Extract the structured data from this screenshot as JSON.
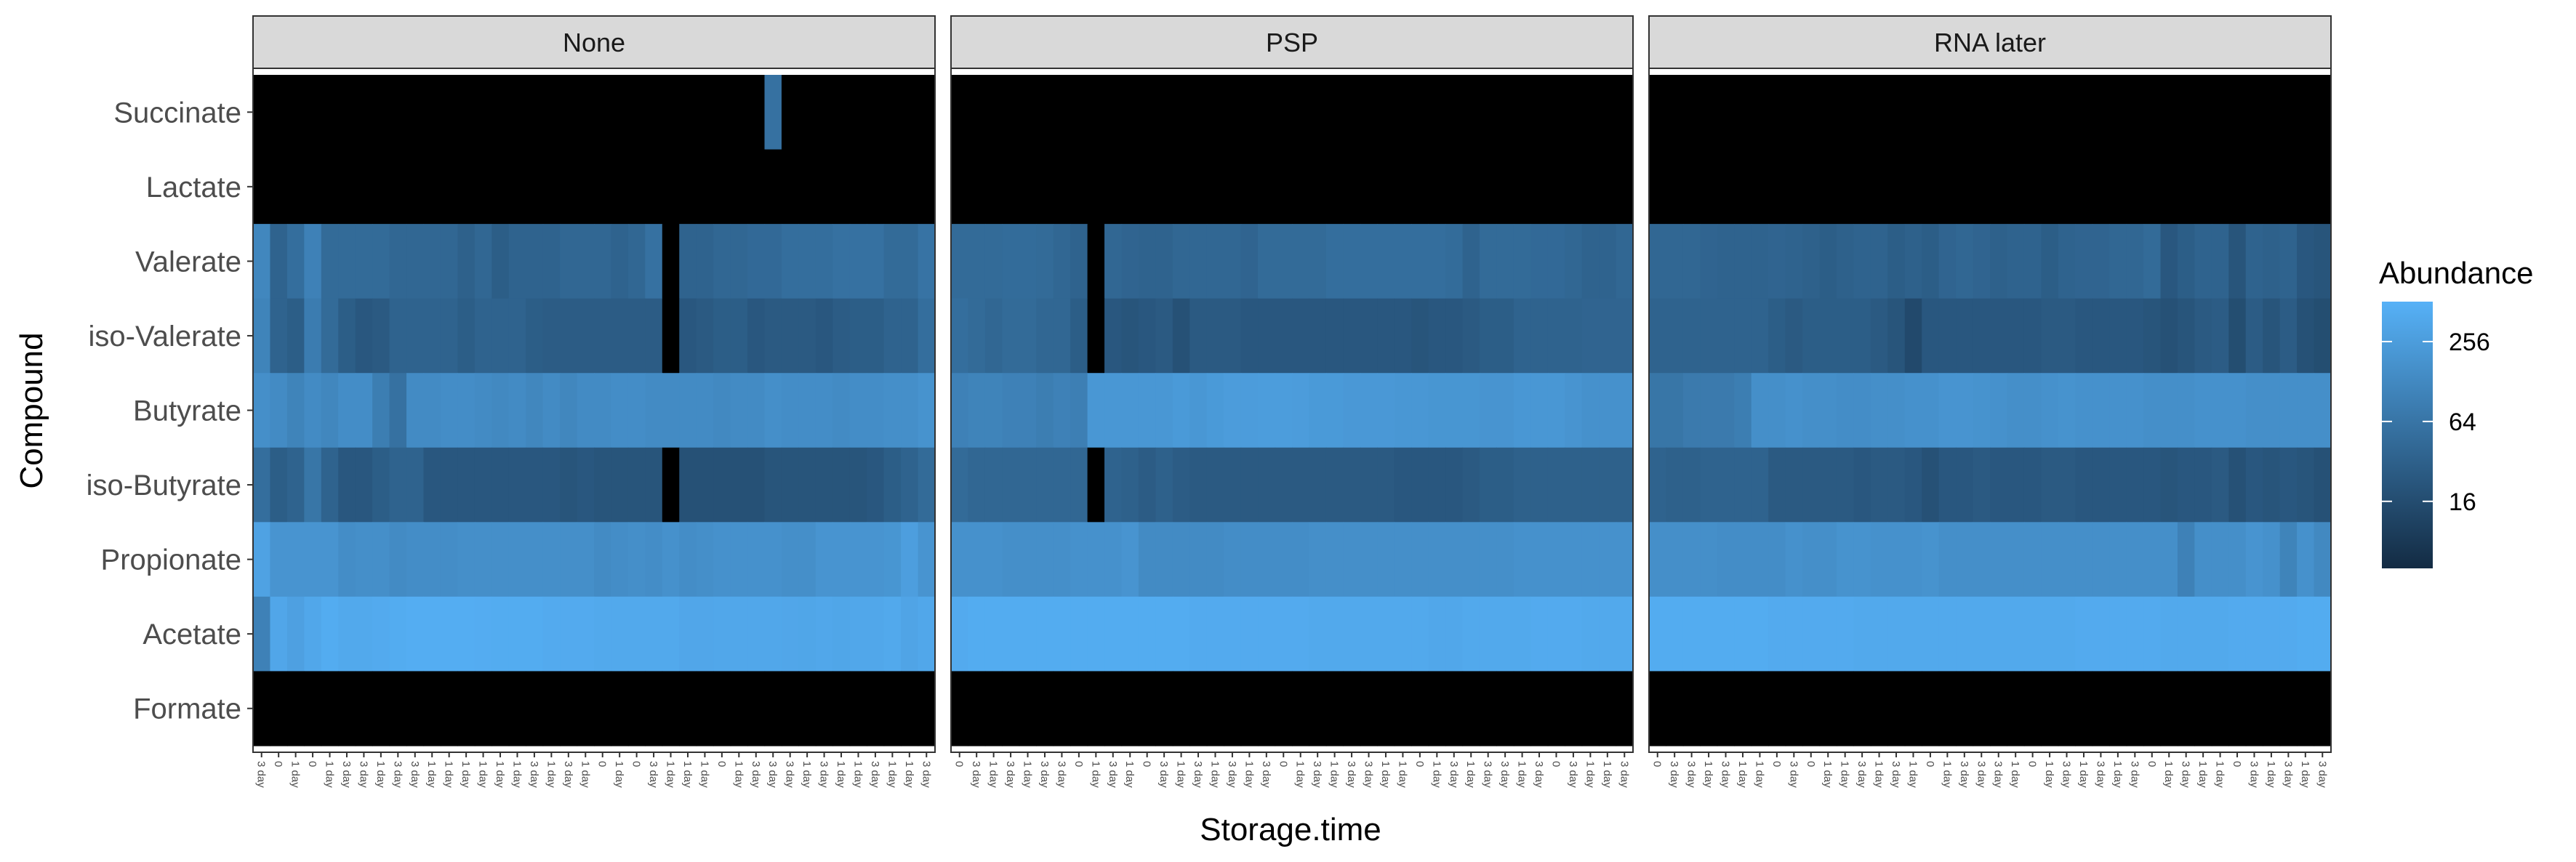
{
  "chart_data": {
    "type": "heatmap",
    "xlabel": "Storage.time",
    "ylabel": "Compound",
    "compounds": [
      "Succinate",
      "Lactate",
      "Valerate",
      "iso-Valerate",
      "Butyrate",
      "iso-Butyrate",
      "Propionate",
      "Acetate",
      "Formate"
    ],
    "legend": {
      "title": "Abundance",
      "position": "right",
      "scale": "log2",
      "range": [
        4,
        512
      ],
      "ticks": [
        16,
        64,
        256
      ],
      "low_color": "#132B43",
      "high_color": "#56B1F7"
    },
    "panels": [
      {
        "name": "None",
        "x_labels": [
          "3 day",
          "0",
          "1 day",
          "0",
          "1 day",
          "3 day",
          "3 day",
          "1 day",
          "3 day",
          "3 day",
          "1 day",
          "1 day",
          "1 day",
          "1 day",
          "1 day",
          "1 day",
          "3 day",
          "1 day",
          "3 day",
          "1 day",
          "0",
          "1 day",
          "0",
          "3 day",
          "1 day",
          "1 day",
          "1 day",
          "0",
          "1 day",
          "3 day",
          "3 day",
          "3 day",
          "1 day",
          "3 day",
          "1 day",
          "1 day",
          "3 day",
          "1 day",
          "1 day",
          "3 day"
        ],
        "values": {
          "Succinate": [
            0,
            0,
            0,
            0,
            0,
            0,
            0,
            0,
            0,
            0,
            0,
            0,
            0,
            0,
            0,
            0,
            0,
            0,
            0,
            0,
            0,
            0,
            0,
            0,
            0,
            0,
            0,
            0,
            0,
            0,
            50,
            0,
            0,
            0,
            0,
            0,
            0,
            0,
            0,
            0
          ],
          "Lactate": [
            0,
            0,
            0,
            0,
            0,
            0,
            0,
            0,
            0,
            0,
            0,
            0,
            0,
            0,
            0,
            0,
            0,
            0,
            0,
            0,
            0,
            0,
            0,
            0,
            0,
            0,
            0,
            0,
            0,
            0,
            0,
            0,
            0,
            0,
            0,
            0,
            0,
            0,
            0,
            0
          ],
          "Valerate": [
            110,
            30,
            45,
            90,
            40,
            40,
            40,
            40,
            35,
            35,
            35,
            35,
            28,
            35,
            25,
            30,
            30,
            30,
            35,
            35,
            35,
            30,
            35,
            50,
            0,
            30,
            30,
            35,
            35,
            38,
            38,
            45,
            45,
            45,
            50,
            50,
            50,
            40,
            40,
            55
          ],
          "iso-Valerate": [
            100,
            30,
            25,
            75,
            40,
            25,
            20,
            22,
            30,
            30,
            30,
            30,
            25,
            30,
            30,
            30,
            25,
            24,
            24,
            24,
            24,
            24,
            24,
            24,
            0,
            20,
            22,
            25,
            25,
            20,
            22,
            22,
            22,
            20,
            24,
            25,
            25,
            30,
            30,
            45
          ],
          "Butyrate": [
            150,
            130,
            100,
            130,
            110,
            140,
            140,
            80,
            50,
            130,
            130,
            140,
            140,
            130,
            120,
            130,
            110,
            130,
            110,
            130,
            130,
            140,
            140,
            130,
            130,
            130,
            130,
            120,
            130,
            130,
            150,
            140,
            140,
            140,
            130,
            140,
            140,
            150,
            150,
            170
          ],
          "iso-Butyrate": [
            45,
            25,
            30,
            60,
            30,
            20,
            20,
            25,
            30,
            30,
            20,
            20,
            20,
            20,
            20,
            20,
            20,
            20,
            18,
            20,
            18,
            18,
            18,
            18,
            0,
            16,
            16,
            16,
            16,
            16,
            18,
            18,
            18,
            18,
            18,
            18,
            20,
            25,
            30,
            40
          ],
          "Propionate": [
            300,
            180,
            180,
            180,
            180,
            140,
            150,
            150,
            130,
            140,
            140,
            140,
            150,
            150,
            150,
            150,
            150,
            150,
            150,
            150,
            130,
            140,
            150,
            140,
            160,
            140,
            150,
            160,
            160,
            160,
            160,
            150,
            150,
            180,
            180,
            180,
            180,
            190,
            260,
            180
          ],
          "Acetate": [
            90,
            350,
            280,
            360,
            420,
            380,
            380,
            400,
            420,
            450,
            450,
            450,
            450,
            430,
            420,
            420,
            420,
            400,
            400,
            400,
            380,
            380,
            380,
            380,
            380,
            350,
            350,
            360,
            360,
            360,
            360,
            350,
            340,
            360,
            340,
            360,
            360,
            380,
            320,
            360
          ]
        }
      },
      {
        "name": "PSP",
        "x_labels": [
          "0",
          "3 day",
          "1 day",
          "3 day",
          "1 day",
          "3 day",
          "3 day",
          "0",
          "1 day",
          "3 day",
          "1 day",
          "0",
          "3 day",
          "1 day",
          "3 day",
          "1 day",
          "3 day",
          "1 day",
          "3 day",
          "0",
          "1 day",
          "3 day",
          "1 day",
          "3 day",
          "3 day",
          "1 day",
          "1 day",
          "0",
          "1 day",
          "3 day",
          "1 day",
          "3 day",
          "3 day",
          "1 day",
          "3 day",
          "0",
          "3 day",
          "1 day",
          "1 day",
          "3 day"
        ],
        "values": {
          "Succinate": [
            0,
            0,
            0,
            0,
            0,
            0,
            0,
            0,
            0,
            0,
            0,
            0,
            0,
            0,
            0,
            0,
            0,
            0,
            0,
            0,
            0,
            0,
            0,
            0,
            0,
            0,
            0,
            0,
            0,
            0,
            0,
            0,
            0,
            0,
            0,
            0,
            0,
            0,
            0,
            0
          ],
          "Lactate": [
            0,
            0,
            0,
            0,
            0,
            0,
            0,
            0,
            0,
            0,
            0,
            0,
            0,
            0,
            0,
            0,
            0,
            0,
            0,
            0,
            0,
            0,
            0,
            0,
            0,
            0,
            0,
            0,
            0,
            0,
            0,
            0,
            0,
            0,
            0,
            0,
            0,
            0,
            0,
            0
          ],
          "Valerate": [
            40,
            40,
            40,
            42,
            42,
            40,
            35,
            30,
            0,
            35,
            32,
            30,
            30,
            35,
            35,
            35,
            35,
            32,
            40,
            40,
            40,
            40,
            45,
            45,
            45,
            45,
            45,
            45,
            45,
            42,
            30,
            40,
            40,
            40,
            38,
            38,
            35,
            30,
            30,
            35
          ],
          "iso-Valerate": [
            45,
            40,
            35,
            40,
            40,
            35,
            35,
            25,
            0,
            20,
            18,
            20,
            22,
            16,
            22,
            22,
            22,
            20,
            20,
            20,
            20,
            20,
            20,
            20,
            20,
            20,
            20,
            18,
            20,
            20,
            22,
            25,
            25,
            30,
            30,
            30,
            30,
            32,
            32,
            32
          ],
          "Butyrate": [
            90,
            100,
            100,
            90,
            90,
            80,
            90,
            85,
            200,
            200,
            200,
            200,
            200,
            220,
            200,
            220,
            240,
            240,
            250,
            250,
            240,
            220,
            220,
            210,
            210,
            210,
            200,
            200,
            190,
            190,
            190,
            180,
            180,
            200,
            200,
            200,
            180,
            160,
            160,
            160
          ],
          "iso-Butyrate": [
            40,
            35,
            35,
            35,
            35,
            35,
            35,
            35,
            0,
            30,
            28,
            24,
            28,
            24,
            22,
            22,
            22,
            22,
            22,
            22,
            22,
            22,
            22,
            22,
            22,
            22,
            20,
            20,
            20,
            20,
            22,
            25,
            25,
            28,
            28,
            28,
            28,
            28,
            28,
            28
          ],
          "Propionate": [
            160,
            160,
            160,
            150,
            150,
            150,
            150,
            160,
            160,
            160,
            180,
            130,
            130,
            130,
            130,
            130,
            140,
            140,
            140,
            140,
            140,
            150,
            150,
            150,
            150,
            150,
            150,
            150,
            150,
            150,
            150,
            150,
            150,
            160,
            160,
            160,
            160,
            160,
            160,
            160
          ],
          "Acetate": [
            400,
            420,
            420,
            420,
            420,
            420,
            420,
            420,
            420,
            420,
            420,
            420,
            420,
            420,
            400,
            400,
            400,
            400,
            400,
            400,
            400,
            380,
            380,
            380,
            380,
            380,
            380,
            380,
            360,
            360,
            380,
            380,
            380,
            380,
            400,
            400,
            400,
            380,
            380,
            380
          ]
        }
      },
      {
        "name": "RNA later",
        "x_labels": [
          "0",
          "3 day",
          "3 day",
          "1 day",
          "3 day",
          "1 day",
          "1 day",
          "0",
          "3 day",
          "0",
          "1 day",
          "1 day",
          "3 day",
          "1 day",
          "3 day",
          "1 day",
          "0",
          "1 day",
          "3 day",
          "3 day",
          "3 day",
          "1 day",
          "0",
          "1 day",
          "3 day",
          "1 day",
          "3 day",
          "1 day",
          "3 day",
          "0",
          "1 day",
          "3 day",
          "1 day",
          "1 day",
          "0",
          "3 day",
          "1 day",
          "3 day",
          "1 day",
          "3 day"
        ],
        "values": {
          "Succinate": [
            0,
            0,
            0,
            0,
            0,
            0,
            0,
            0,
            0,
            0,
            0,
            0,
            0,
            0,
            0,
            0,
            0,
            0,
            0,
            0,
            0,
            0,
            0,
            0,
            0,
            0,
            0,
            0,
            0,
            0,
            0,
            0,
            0,
            0,
            0,
            0,
            0,
            0,
            0,
            0
          ],
          "Lactate": [
            0,
            0,
            0,
            0,
            0,
            0,
            0,
            0,
            0,
            0,
            0,
            0,
            0,
            0,
            0,
            0,
            0,
            0,
            0,
            0,
            0,
            0,
            0,
            0,
            0,
            0,
            0,
            0,
            0,
            0,
            0,
            0,
            0,
            0,
            0,
            0,
            0,
            0,
            0,
            0
          ],
          "Valerate": [
            35,
            35,
            35,
            32,
            30,
            30,
            30,
            32,
            30,
            28,
            25,
            28,
            30,
            30,
            25,
            28,
            25,
            32,
            35,
            32,
            28,
            30,
            30,
            25,
            30,
            32,
            32,
            35,
            35,
            40,
            20,
            25,
            30,
            30,
            18,
            30,
            28,
            30,
            20,
            18
          ],
          "iso-Valerate": [
            30,
            30,
            30,
            30,
            30,
            30,
            30,
            25,
            22,
            25,
            25,
            25,
            25,
            22,
            18,
            12,
            20,
            20,
            20,
            20,
            20,
            20,
            20,
            22,
            22,
            20,
            20,
            20,
            20,
            18,
            16,
            18,
            22,
            24,
            14,
            24,
            18,
            24,
            16,
            14
          ],
          "Butyrate": [
            60,
            60,
            70,
            70,
            70,
            80,
            150,
            150,
            160,
            150,
            150,
            140,
            140,
            150,
            150,
            160,
            160,
            180,
            180,
            170,
            160,
            150,
            150,
            160,
            170,
            160,
            160,
            160,
            160,
            150,
            150,
            150,
            160,
            160,
            160,
            150,
            150,
            150,
            150,
            150
          ],
          "iso-Butyrate": [
            30,
            28,
            28,
            30,
            30,
            30,
            30,
            22,
            22,
            22,
            22,
            22,
            20,
            22,
            22,
            20,
            16,
            20,
            20,
            22,
            20,
            20,
            20,
            22,
            22,
            20,
            20,
            20,
            20,
            20,
            18,
            20,
            20,
            22,
            16,
            20,
            18,
            20,
            18,
            16
          ],
          "Propionate": [
            150,
            150,
            150,
            150,
            140,
            140,
            140,
            140,
            160,
            150,
            150,
            170,
            170,
            160,
            160,
            160,
            170,
            150,
            150,
            150,
            150,
            150,
            150,
            150,
            150,
            150,
            150,
            150,
            150,
            150,
            150,
            90,
            150,
            150,
            150,
            180,
            160,
            100,
            160,
            120
          ],
          "Acetate": [
            420,
            420,
            420,
            420,
            420,
            420,
            420,
            400,
            400,
            400,
            400,
            400,
            380,
            380,
            380,
            380,
            380,
            380,
            380,
            380,
            380,
            380,
            380,
            380,
            380,
            400,
            400,
            400,
            400,
            400,
            380,
            380,
            380,
            380,
            400,
            400,
            400,
            400,
            420,
            420
          ]
        }
      }
    ],
    "highlights_black_cell_note": ""
  }
}
